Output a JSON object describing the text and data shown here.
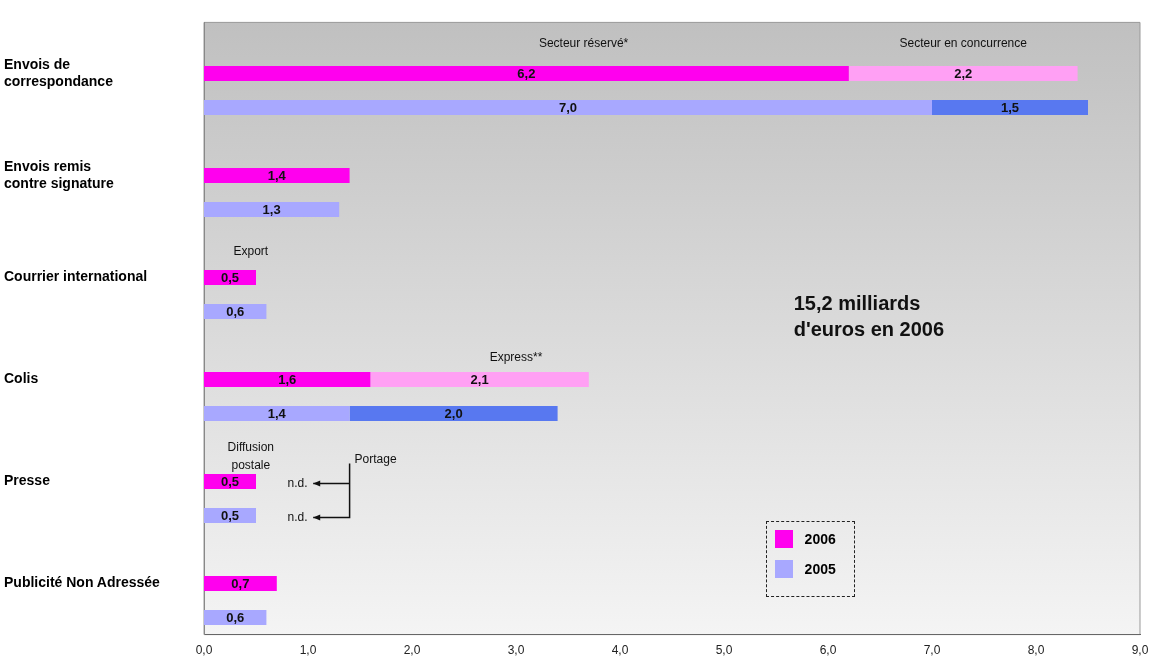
{
  "chart_data": {
    "type": "bar",
    "orientation": "horizontal",
    "stacked": true,
    "categories": [
      null,
      "Envois de correspondance",
      null,
      null,
      "Envois remis contre signature",
      null,
      null,
      "Courrier international",
      null,
      null,
      "Colis",
      null,
      null,
      "Presse",
      null,
      null,
      "Publicité Non Adressée",
      null
    ],
    "series": [
      {
        "name": "2006",
        "color": "#ff00ee",
        "values": [
          null,
          6.2,
          null,
          null,
          1.4,
          null,
          null,
          0.5,
          null,
          null,
          1.6,
          null,
          null,
          0.5,
          null,
          null,
          0.7,
          null
        ],
        "value_labels": [
          null,
          "6,2",
          null,
          null,
          "1,4",
          null,
          null,
          "0,5",
          null,
          null,
          "1,6",
          null,
          null,
          "0,5",
          null,
          null,
          "0,7",
          null
        ]
      },
      {
        "color": "#ffa0f4",
        "values": [
          null,
          2.2,
          null,
          null,
          null,
          null,
          null,
          null,
          null,
          null,
          2.1,
          null,
          null,
          null,
          null,
          null,
          null,
          null
        ],
        "value_labels": [
          null,
          "2,2",
          null,
          null,
          null,
          null,
          null,
          null,
          null,
          null,
          "2,1",
          null,
          null,
          null,
          null,
          null,
          null,
          null
        ]
      },
      {
        "name": "2005",
        "color": "#a8a8ff",
        "values": [
          null,
          null,
          7.0,
          null,
          null,
          1.3,
          null,
          null,
          0.6,
          null,
          null,
          1.4,
          null,
          null,
          0.5,
          null,
          null,
          0.6
        ],
        "value_labels": [
          null,
          null,
          "7,0",
          null,
          null,
          "1,3",
          null,
          null,
          "0,6",
          null,
          null,
          "1,4",
          null,
          null,
          "0,5",
          null,
          null,
          "0,6"
        ]
      },
      {
        "color": "#5878f0",
        "values": [
          null,
          null,
          1.5,
          null,
          null,
          null,
          null,
          null,
          null,
          null,
          null,
          2.0,
          null,
          null,
          null,
          null,
          null,
          null
        ],
        "value_labels": [
          null,
          null,
          "1,5",
          null,
          null,
          null,
          null,
          null,
          null,
          null,
          null,
          "2,0",
          null,
          null,
          null,
          null,
          null,
          null
        ]
      }
    ],
    "xlim": [
      0,
      9
    ],
    "xticks": [
      {
        "value": 0,
        "label": "0,0"
      },
      {
        "value": 1,
        "label": "1,0"
      },
      {
        "value": 2,
        "label": "2,0"
      },
      {
        "value": 3,
        "label": "3,0"
      },
      {
        "value": 4,
        "label": "4,0"
      },
      {
        "value": 5,
        "label": "5,0"
      },
      {
        "value": 6,
        "label": "6,0"
      },
      {
        "value": 7,
        "label": "7,0"
      },
      {
        "value": 8,
        "label": "8,0"
      },
      {
        "value": 9,
        "label": "9,0"
      }
    ],
    "grid": false,
    "legend": "bottom right",
    "annotations": [
      "Secteur réservé*",
      "Secteur en concurrence",
      "Export",
      "Express**",
      "Diffusion postale",
      "Portage",
      "n.d.",
      "n.d.",
      "15,2 milliards d'euros en 2006"
    ]
  }
}
